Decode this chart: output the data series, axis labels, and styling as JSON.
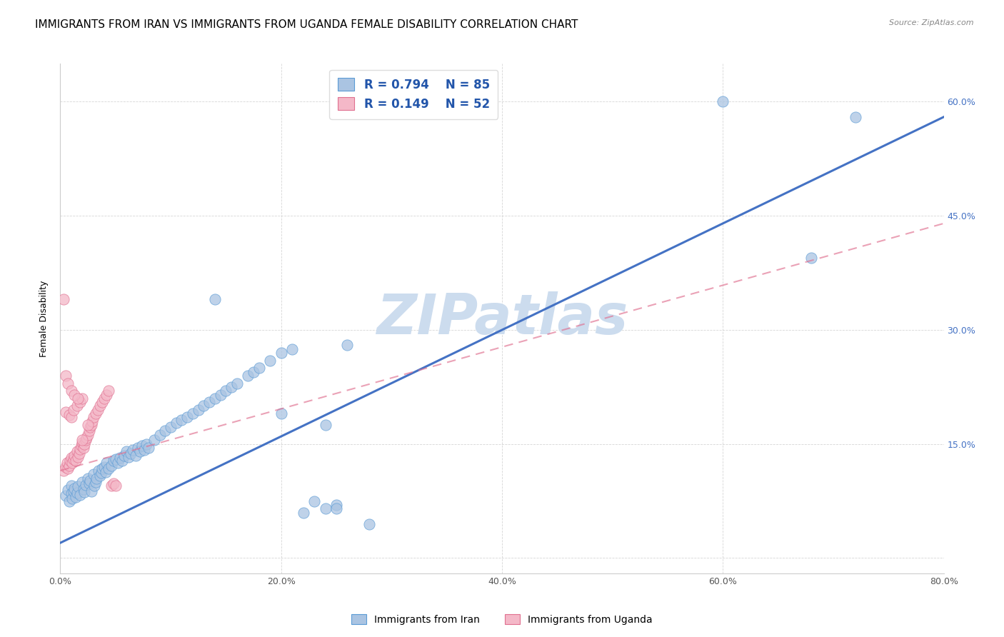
{
  "title": "IMMIGRANTS FROM IRAN VS IMMIGRANTS FROM UGANDA FEMALE DISABILITY CORRELATION CHART",
  "source": "Source: ZipAtlas.com",
  "ylabel": "Female Disability",
  "xlim": [
    0.0,
    0.8
  ],
  "ylim": [
    -0.02,
    0.65
  ],
  "xticks": [
    0.0,
    0.2,
    0.4,
    0.6,
    0.8
  ],
  "yticks": [
    0.0,
    0.15,
    0.3,
    0.45,
    0.6
  ],
  "ytick_labels": [
    "",
    "15.0%",
    "30.0%",
    "45.0%",
    "60.0%"
  ],
  "xtick_labels": [
    "0.0%",
    "20.0%",
    "40.0%",
    "60.0%",
    "80.0%"
  ],
  "iran_R": 0.794,
  "iran_N": 85,
  "uganda_R": 0.149,
  "uganda_N": 52,
  "iran_color": "#aac4e2",
  "iran_edge_color": "#5b9bd5",
  "iran_line_color": "#4472c4",
  "uganda_color": "#f4b8c8",
  "uganda_edge_color": "#e07090",
  "uganda_line_color": "#e07090",
  "legend_label_iran": "Immigrants from Iran",
  "legend_label_uganda": "Immigrants from Uganda",
  "watermark": "ZIPatlas",
  "watermark_color": "#ccdcee",
  "title_fontsize": 11,
  "axis_label_fontsize": 9,
  "tick_fontsize": 9,
  "right_tick_color": "#4472c4",
  "iran_line_x0": 0.0,
  "iran_line_y0": 0.02,
  "iran_line_x1": 0.8,
  "iran_line_y1": 0.58,
  "uganda_line_x0": 0.0,
  "uganda_line_y0": 0.115,
  "uganda_line_x1": 0.8,
  "uganda_line_y1": 0.44,
  "iran_scatter_x": [
    0.005,
    0.007,
    0.008,
    0.01,
    0.01,
    0.011,
    0.012,
    0.013,
    0.014,
    0.015,
    0.016,
    0.018,
    0.02,
    0.021,
    0.022,
    0.023,
    0.025,
    0.026,
    0.027,
    0.028,
    0.03,
    0.031,
    0.032,
    0.033,
    0.035,
    0.036,
    0.037,
    0.038,
    0.04,
    0.041,
    0.042,
    0.044,
    0.046,
    0.048,
    0.05,
    0.052,
    0.054,
    0.056,
    0.058,
    0.06,
    0.062,
    0.064,
    0.066,
    0.068,
    0.07,
    0.072,
    0.074,
    0.076,
    0.078,
    0.08,
    0.085,
    0.09,
    0.095,
    0.1,
    0.105,
    0.11,
    0.115,
    0.12,
    0.125,
    0.13,
    0.135,
    0.14,
    0.145,
    0.15,
    0.155,
    0.16,
    0.17,
    0.175,
    0.18,
    0.19,
    0.2,
    0.21,
    0.22,
    0.23,
    0.24,
    0.25,
    0.14,
    0.2,
    0.24,
    0.25,
    0.6,
    0.68,
    0.72,
    0.26,
    0.28
  ],
  "iran_scatter_y": [
    0.082,
    0.09,
    0.075,
    0.095,
    0.085,
    0.078,
    0.088,
    0.092,
    0.08,
    0.086,
    0.094,
    0.083,
    0.1,
    0.091,
    0.087,
    0.096,
    0.105,
    0.098,
    0.102,
    0.088,
    0.11,
    0.095,
    0.1,
    0.105,
    0.115,
    0.108,
    0.112,
    0.118,
    0.12,
    0.113,
    0.125,
    0.118,
    0.122,
    0.128,
    0.13,
    0.125,
    0.132,
    0.128,
    0.135,
    0.14,
    0.133,
    0.138,
    0.142,
    0.135,
    0.145,
    0.14,
    0.148,
    0.142,
    0.15,
    0.145,
    0.155,
    0.162,
    0.168,
    0.172,
    0.178,
    0.182,
    0.185,
    0.19,
    0.195,
    0.2,
    0.205,
    0.21,
    0.215,
    0.22,
    0.225,
    0.23,
    0.24,
    0.245,
    0.25,
    0.26,
    0.27,
    0.275,
    0.06,
    0.075,
    0.065,
    0.07,
    0.34,
    0.19,
    0.175,
    0.065,
    0.6,
    0.395,
    0.58,
    0.28,
    0.045
  ],
  "uganda_scatter_x": [
    0.003,
    0.005,
    0.006,
    0.007,
    0.008,
    0.009,
    0.01,
    0.011,
    0.012,
    0.013,
    0.014,
    0.015,
    0.016,
    0.017,
    0.018,
    0.019,
    0.02,
    0.021,
    0.022,
    0.023,
    0.024,
    0.025,
    0.026,
    0.027,
    0.028,
    0.029,
    0.03,
    0.032,
    0.034,
    0.036,
    0.038,
    0.04,
    0.042,
    0.044,
    0.046,
    0.048,
    0.05,
    0.005,
    0.008,
    0.01,
    0.012,
    0.015,
    0.018,
    0.02,
    0.003,
    0.005,
    0.007,
    0.01,
    0.013,
    0.016,
    0.02,
    0.025
  ],
  "uganda_scatter_y": [
    0.115,
    0.12,
    0.125,
    0.118,
    0.122,
    0.128,
    0.132,
    0.125,
    0.13,
    0.135,
    0.128,
    0.14,
    0.133,
    0.138,
    0.143,
    0.148,
    0.152,
    0.145,
    0.15,
    0.155,
    0.158,
    0.162,
    0.168,
    0.172,
    0.175,
    0.18,
    0.185,
    0.19,
    0.195,
    0.2,
    0.205,
    0.21,
    0.215,
    0.22,
    0.095,
    0.098,
    0.095,
    0.192,
    0.188,
    0.185,
    0.195,
    0.2,
    0.205,
    0.21,
    0.34,
    0.24,
    0.23,
    0.22,
    0.215,
    0.21,
    0.155,
    0.175
  ]
}
